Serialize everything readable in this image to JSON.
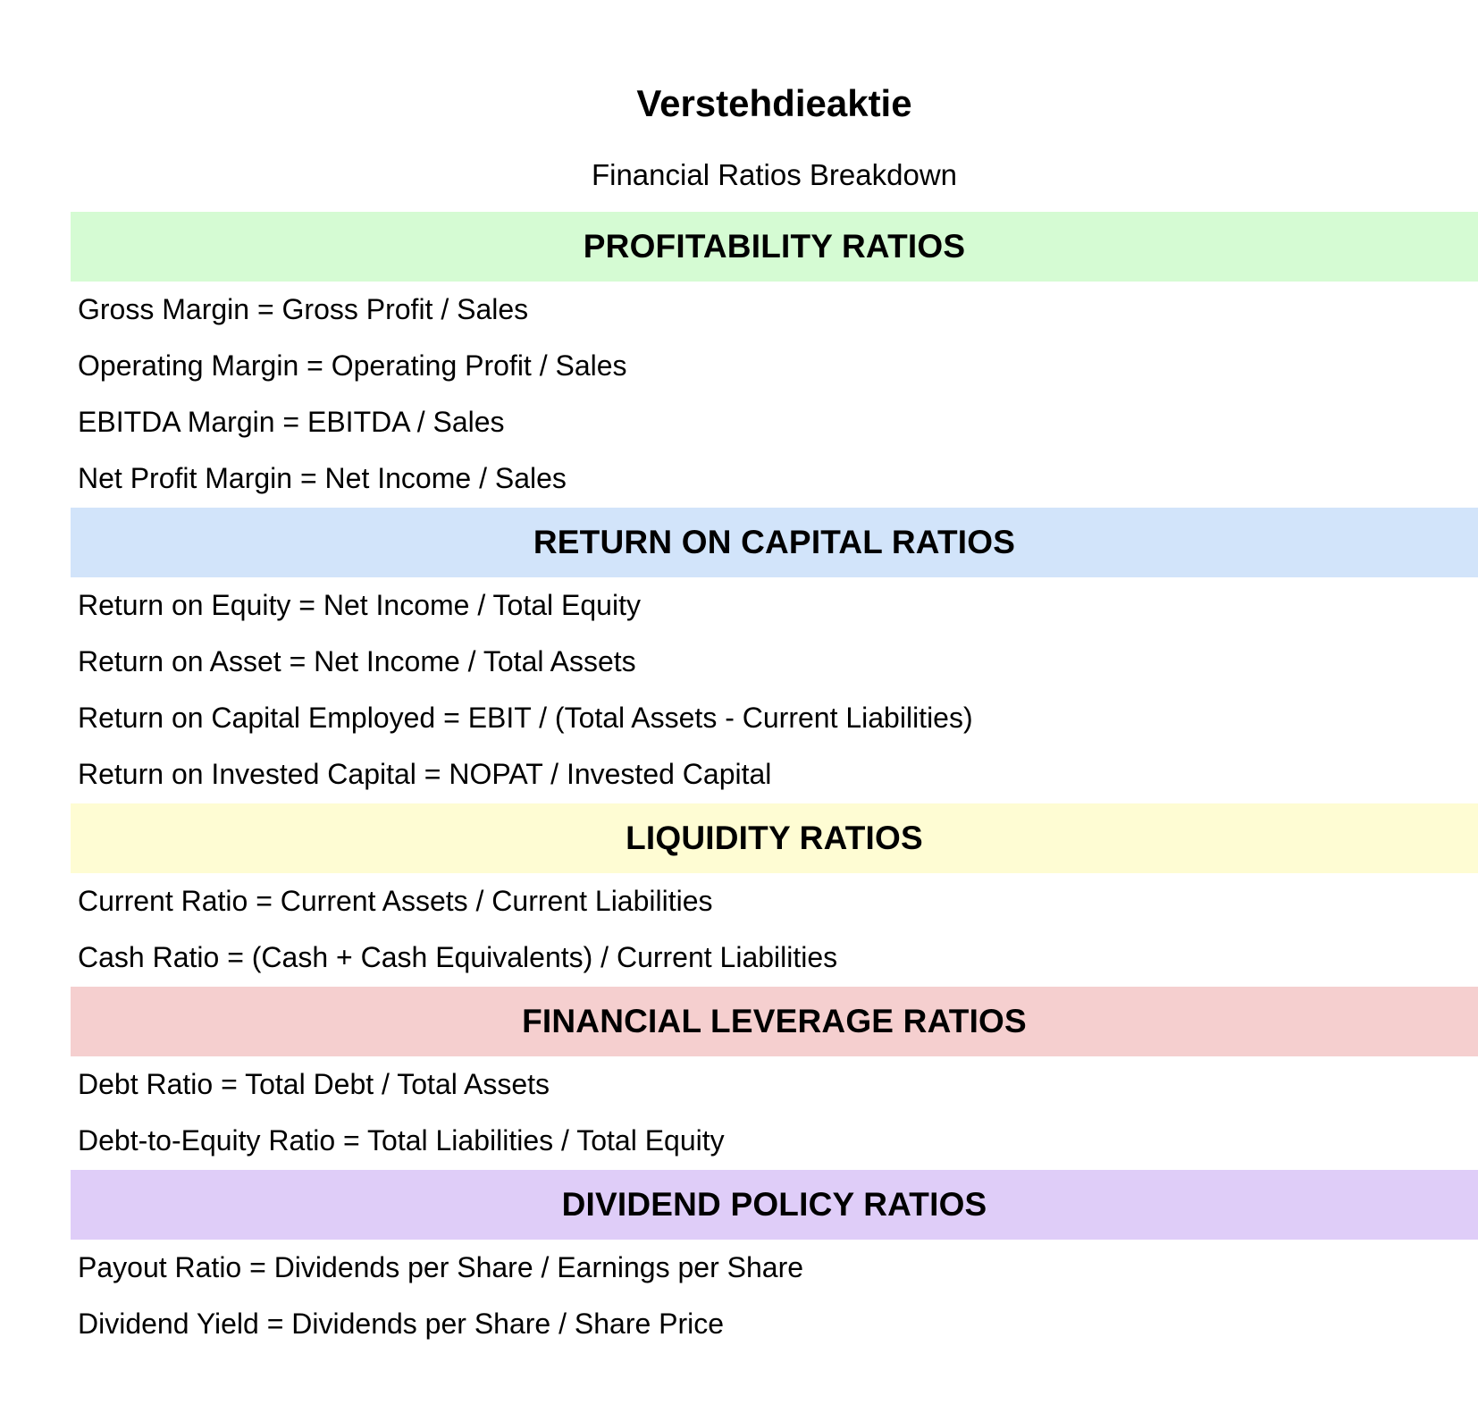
{
  "document": {
    "title": "Verstehdieaktie",
    "subtitle": "Financial Ratios Breakdown"
  },
  "sections": [
    {
      "heading": "PROFITABILITY RATIOS",
      "color": "#d5fbd3",
      "rows": [
        "Gross Margin = Gross Profit / Sales",
        "Operating Margin = Operating Profit / Sales",
        "EBITDA Margin = EBITDA / Sales",
        "Net Profit Margin = Net Income / Sales"
      ]
    },
    {
      "heading": "RETURN ON CAPITAL RATIOS",
      "color": "#d2e4fa",
      "rows": [
        "Return on Equity = Net Income / Total Equity",
        "Return on Asset = Net Income / Total Assets",
        "Return on Capital Employed = EBIT / (Total Assets - Current Liabilities)",
        "Return on Invested Capital = NOPAT / Invested Capital"
      ]
    },
    {
      "heading": "LIQUIDITY RATIOS",
      "color": "#fefcd3",
      "rows": [
        "Current Ratio = Current Assets / Current Liabilities",
        "Cash Ratio = (Cash + Cash Equivalents) / Current Liabilities"
      ]
    },
    {
      "heading": "FINANCIAL LEVERAGE RATIOS",
      "color": "#f5cfcf",
      "rows": [
        "Debt Ratio = Total Debt / Total Assets",
        "Debt-to-Equity Ratio = Total Liabilities / Total Equity"
      ]
    },
    {
      "heading": "DIVIDEND POLICY RATIOS",
      "color": "#dfcdf8",
      "rows": [
        "Payout Ratio = Dividends per Share / Earnings per Share",
        "Dividend Yield = Dividends per Share / Share Price"
      ]
    }
  ]
}
